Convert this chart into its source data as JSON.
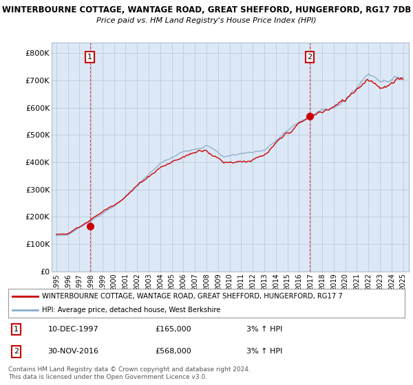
{
  "title1": "WINTERBOURNE COTTAGE, WANTAGE ROAD, GREAT SHEFFORD, HUNGERFORD, RG17 7DB",
  "title2": "Price paid vs. HM Land Registry's House Price Index (HPI)",
  "ylim": [
    0,
    840000
  ],
  "yticks": [
    0,
    100000,
    200000,
    300000,
    400000,
    500000,
    600000,
    700000,
    800000
  ],
  "ytick_labels": [
    "£0",
    "£100K",
    "£200K",
    "£300K",
    "£400K",
    "£500K",
    "£600K",
    "£700K",
    "£800K"
  ],
  "sale1_year": 1997.92,
  "sale1_price": 165000,
  "sale2_year": 2016.92,
  "sale2_price": 568000,
  "line_color_red": "#cc0000",
  "line_color_blue": "#88aacc",
  "plot_bg_color": "#dce8f5",
  "background_color": "#ffffff",
  "grid_color": "#aabbcc",
  "legend_label_red": "WINTERBOURNE COTTAGE, WANTAGE ROAD, GREAT SHEFFORD, HUNGERFORD, RG17 7",
  "legend_label_blue": "HPI: Average price, detached house, West Berkshire",
  "note1_num": "1",
  "note1_date": "10-DEC-1997",
  "note1_price": "£165,000",
  "note1_hpi": "3% ↑ HPI",
  "note2_num": "2",
  "note2_date": "30-NOV-2016",
  "note2_price": "£568,000",
  "note2_hpi": "3% ↑ HPI",
  "footer": "Contains HM Land Registry data © Crown copyright and database right 2024.\nThis data is licensed under the Open Government Licence v3.0."
}
